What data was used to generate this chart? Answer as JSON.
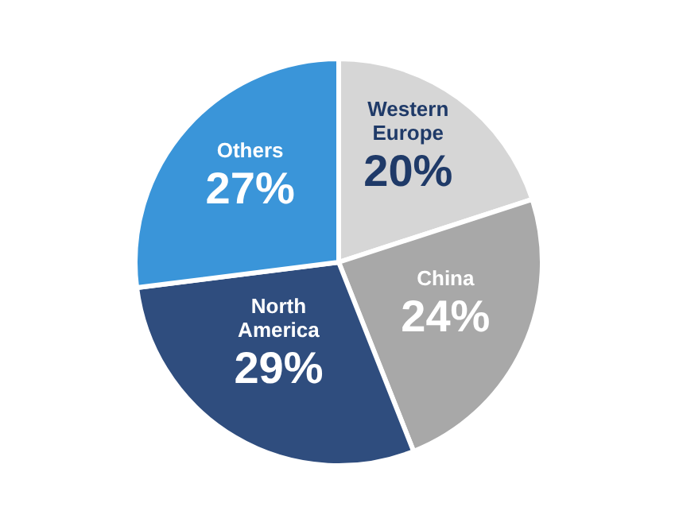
{
  "chart_data": {
    "type": "pie",
    "categories": [
      "Western Europe",
      "China",
      "North America",
      "Others"
    ],
    "values": [
      20,
      24,
      29,
      27
    ],
    "value_labels": [
      "20%",
      "24%",
      "29%",
      "27%"
    ],
    "colors": [
      "#d6d6d6",
      "#a8a8a8",
      "#2f4d7e",
      "#3a95d9"
    ]
  }
}
